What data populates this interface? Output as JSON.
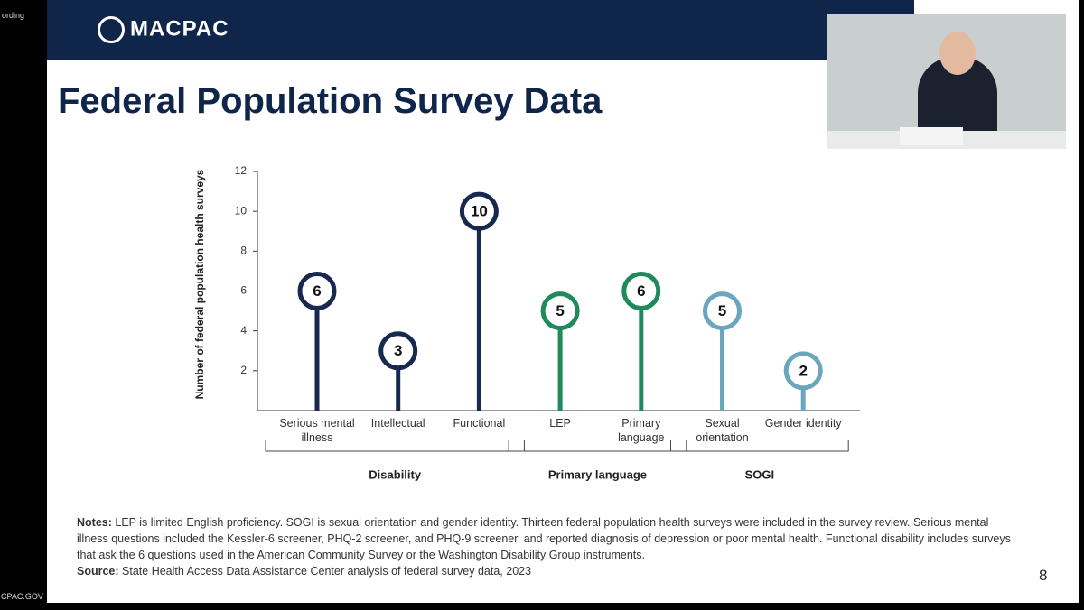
{
  "screen": {
    "corner_text": "ording",
    "footer_text": "CPAC.GOV"
  },
  "header": {
    "logo": "MACPAC",
    "title": "Federal Population Survey Data"
  },
  "chart_data": {
    "type": "lollipop",
    "y_label": "Number of federal population health surveys",
    "categories": [
      "Serious mental illness",
      "Intellectual",
      "Functional",
      "LEP",
      "Primary language",
      "Sexual orientation",
      "Gender identity"
    ],
    "series": [
      {
        "name": "Disability",
        "color": "#17294f",
        "values": [
          6,
          3,
          10,
          null,
          null,
          null,
          null
        ]
      },
      {
        "name": "Primary language",
        "color": "#1f8a5c",
        "values": [
          null,
          null,
          null,
          5,
          6,
          null,
          null
        ]
      },
      {
        "name": "SOGI",
        "color": "#6aa6bd",
        "values": [
          null,
          null,
          null,
          null,
          null,
          5,
          2
        ]
      }
    ],
    "ylim": [
      0,
      12
    ],
    "yticks": [
      2,
      4,
      6,
      8,
      10,
      12
    ]
  },
  "notes": {
    "notes_label": "Notes:",
    "notes": "LEP is limited English proficiency. SOGI is sexual orientation and gender identity. Thirteen federal population health surveys were included in the survey review. Serious mental illness questions included the Kessler-6 screener, PHQ-2 screener, and PHQ-9 screener, and reported diagnosis of depression or poor mental health. Functional disability includes surveys that ask the 6 questions used in the American Community Survey or the Washington Disability Group instruments.",
    "source_label": "Source:",
    "source": "State Health Access Data Assistance Center analysis of federal survey data, 2023"
  },
  "slide_number": "8"
}
